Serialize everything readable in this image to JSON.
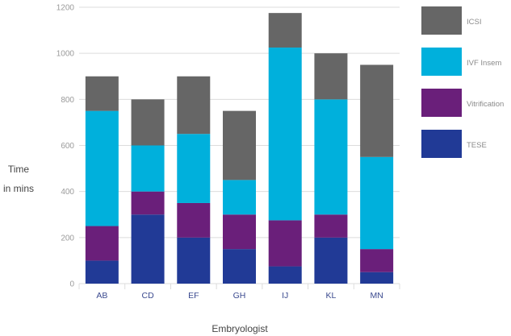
{
  "chart_data": {
    "type": "bar",
    "stacked": true,
    "title": "",
    "xlabel": "Embryologist",
    "ylabel_lines": [
      "Time",
      "in mins"
    ],
    "ylim": [
      0,
      1200
    ],
    "yticks": [
      0,
      200,
      400,
      600,
      800,
      1000,
      1200
    ],
    "grid": true,
    "legend_position": "right",
    "categories": [
      "AB",
      "CD",
      "EF",
      "GH",
      "IJ",
      "KL",
      "MN"
    ],
    "series": [
      {
        "name": "TESE",
        "color": "#213a96",
        "values": [
          100,
          300,
          200,
          150,
          75,
          200,
          50
        ]
      },
      {
        "name": "Vitrification",
        "color": "#6a1f7a",
        "values": [
          150,
          100,
          150,
          150,
          200,
          100,
          100
        ]
      },
      {
        "name": "IVF Insem",
        "color": "#00b0dc",
        "values": [
          500,
          200,
          300,
          150,
          750,
          500,
          400
        ]
      },
      {
        "name": "ICSI",
        "color": "#666666",
        "values": [
          150,
          200,
          250,
          300,
          150,
          200,
          400
        ]
      }
    ]
  }
}
